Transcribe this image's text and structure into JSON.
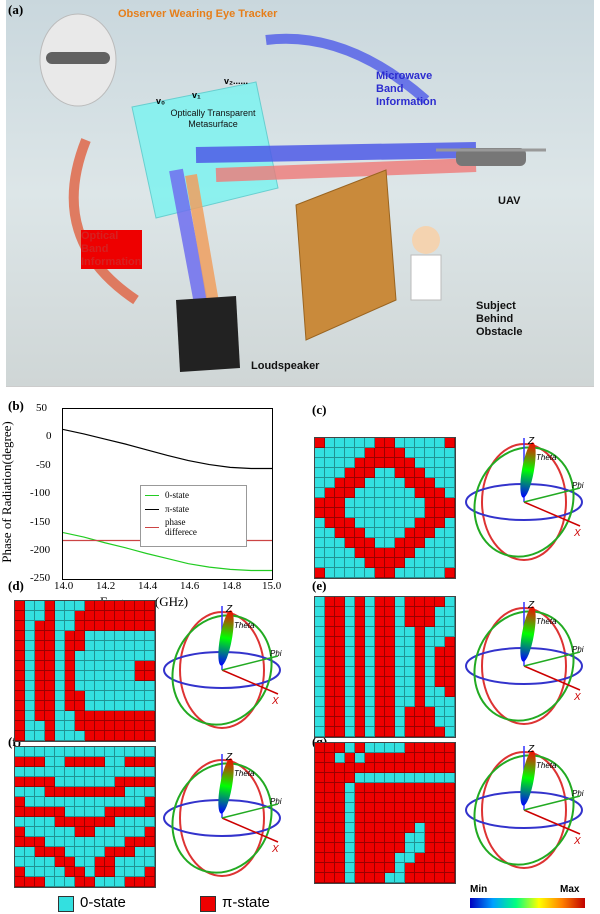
{
  "panel_labels": {
    "a": "(a)",
    "b": "(b)",
    "c": "(c)",
    "d": "(d)",
    "e": "(e)",
    "f": "(f)",
    "g": "(g)"
  },
  "scene": {
    "observer_title": "Observer Wearing\nEye Tracker",
    "v0": "v₀",
    "v1": "v₁",
    "v2": "v₂......",
    "metasurface": "Optically Transparent\nMetasurface",
    "microwave": "Microwave\nBand\nInformation",
    "optical": "Optical\nBand\nInformation",
    "uav": "UAV",
    "subject": "Subject\nBehind\nObstacle",
    "loudspeaker": "Loudspeaker"
  },
  "chart_data": {
    "type": "line",
    "xlabel": "Frequency(GHz)",
    "ylabel": "Phase of Radiation(degree)",
    "xlim": [
      14.0,
      15.0
    ],
    "ylim": [
      -250,
      50
    ],
    "xticks": [
      "14.0",
      "14.2",
      "14.4",
      "14.6",
      "14.8",
      "15.0"
    ],
    "yticks": [
      "50",
      "0",
      "-50",
      "-100",
      "-150",
      "-200",
      "-250"
    ],
    "series": [
      {
        "name": "0-state",
        "color": "#22cc22",
        "x": [
          14.0,
          14.1,
          14.2,
          14.3,
          14.4,
          14.5,
          14.6,
          14.7,
          14.8,
          14.9,
          15.0
        ],
        "y": [
          -168,
          -176,
          -186,
          -195,
          -205,
          -214,
          -223,
          -229,
          -233,
          -235,
          -235
        ]
      },
      {
        "name": "π-state",
        "color": "#000000",
        "x": [
          14.0,
          14.1,
          14.2,
          14.3,
          14.4,
          14.5,
          14.6,
          14.7,
          14.8,
          14.9,
          15.0
        ],
        "y": [
          14,
          6,
          -3,
          -12,
          -22,
          -32,
          -41,
          -48,
          -53,
          -55,
          -55
        ]
      },
      {
        "name": "phase\ndifferece",
        "color": "#cc4444",
        "x": [
          14.0,
          14.1,
          14.2,
          14.3,
          14.4,
          14.5,
          14.6,
          14.7,
          14.8,
          14.9,
          15.0
        ],
        "y": [
          -182,
          -182,
          -182,
          -182,
          -182,
          -182,
          -182,
          -182,
          -182,
          -182,
          -182
        ]
      }
    ],
    "legend_position": "center-right"
  },
  "patterns": {
    "c": [
      "10000011000001",
      "00000111100000",
      "00001111110000",
      "00011100111000",
      "00111000011100",
      "01110000001110",
      "11100000000111",
      "11100000000111",
      "01110000001110",
      "00111000011100",
      "00011100111000",
      "00001111110000",
      "00000111100000",
      "10000011000001"
    ],
    "d": [
      "10010001111111",
      "10010011111111",
      "10110011111111",
      "10110110000000",
      "10110110000000",
      "10110100000000",
      "10110100000011",
      "10110100000011",
      "10110100000000",
      "10110110000000",
      "10110110000000",
      "10110011111111",
      "10010011111111",
      "10010001111111"
    ],
    "e": [
      "01101011011110",
      "01101011011100",
      "01101011011100",
      "01101011001000",
      "01101011001001",
      "01101011001011",
      "01101011001011",
      "01101011001011",
      "01101011001011",
      "01101011001001",
      "01101011001000",
      "01101011011100",
      "01101011011100",
      "01101011011110"
    ],
    "f": [
      "00000000000000",
      "11100111100111",
      "00000000000000",
      "11110000001111",
      "00011111111000",
      "10000000000001",
      "11111000011111",
      "00001111110000",
      "10000011000001",
      "11100000000111",
      "00111000011100",
      "00001100110000",
      "10000110110001",
      "11100011000111"
    ],
    "g": [
      "11101000011111",
      "11010111111111",
      "11111111111111",
      "11110000000000",
      "11101111111111",
      "11101111111111",
      "11101111111111",
      "11101111111111",
      "11101111110111",
      "11101111100111",
      "11101111100111",
      "11101111001111",
      "11101111011111",
      "11101110011111"
    ]
  },
  "radiation": {
    "z": "Z",
    "theta": "Theta",
    "phi": "Phi",
    "x": "X"
  },
  "bottom_legend": {
    "zero_state": "0-state",
    "pi_state": "π-state",
    "min": "Min",
    "max": "Max"
  },
  "colors": {
    "cyan": "#33e0e0",
    "red": "#e00000",
    "blue": "#2c2ccf",
    "orange": "#e67e1a"
  }
}
